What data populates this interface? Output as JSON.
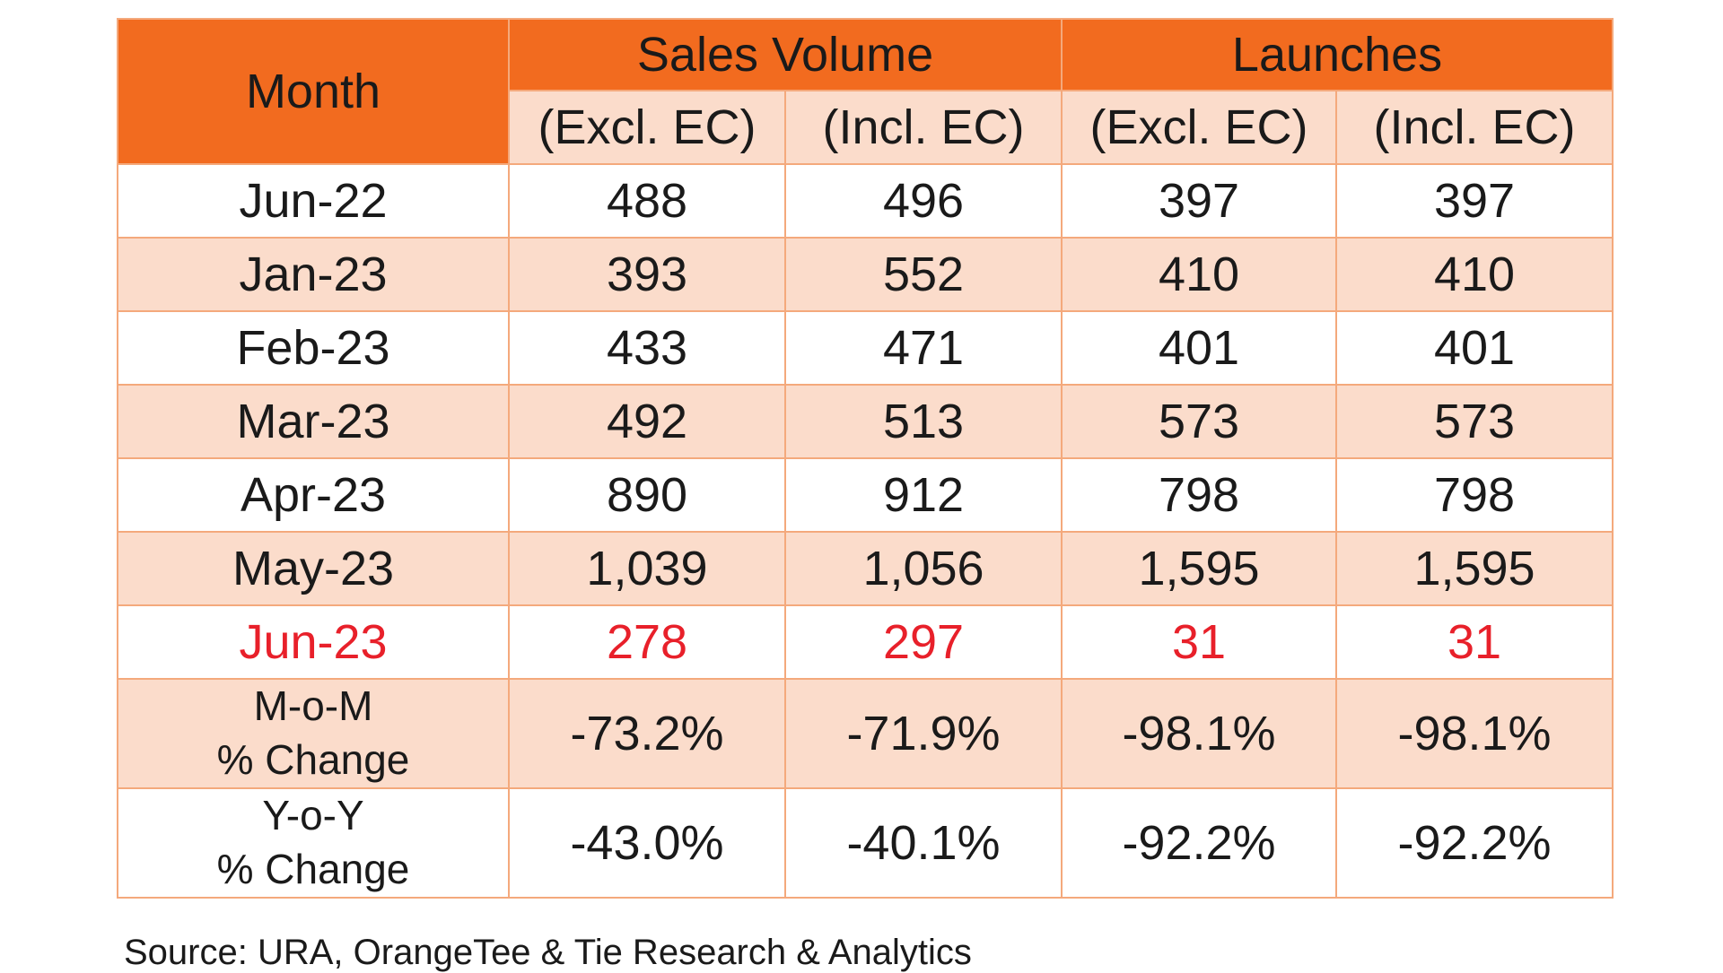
{
  "table": {
    "header": {
      "month": "Month",
      "groups": [
        "Sales Volume",
        "Launches"
      ],
      "sub": [
        "(Excl. EC)",
        "(Incl. EC)",
        "(Excl. EC)",
        "(Incl. EC)"
      ]
    },
    "rows": [
      {
        "month": "Jun-22",
        "values": [
          "488",
          "496",
          "397",
          "397"
        ]
      },
      {
        "month": "Jan-23",
        "values": [
          "393",
          "552",
          "410",
          "410"
        ]
      },
      {
        "month": "Feb-23",
        "values": [
          "433",
          "471",
          "401",
          "401"
        ]
      },
      {
        "month": "Mar-23",
        "values": [
          "492",
          "513",
          "573",
          "573"
        ]
      },
      {
        "month": "Apr-23",
        "values": [
          "890",
          "912",
          "798",
          "798"
        ]
      },
      {
        "month": "May-23",
        "values": [
          "1,039",
          "1,056",
          "1,595",
          "1,595"
        ]
      },
      {
        "month": "Jun-23",
        "values": [
          "278",
          "297",
          "31",
          "31"
        ]
      }
    ],
    "mom": {
      "line1": "M-o-M",
      "line2": "% Change",
      "values": [
        "-73.2%",
        "-71.9%",
        "-98.1%",
        "-98.1%"
      ]
    },
    "yoy": {
      "line1": "Y-o-Y",
      "line2": "% Change",
      "values": [
        "-43.0%",
        "-40.1%",
        "-92.2%",
        "-92.2%"
      ]
    }
  },
  "source": "Source: URA, OrangeTee & Tie Research & Analytics",
  "colors": {
    "header_orange": "#f26b1f",
    "row_peach": "#fbdccb",
    "highlight_red": "#e8202a",
    "border": "#f4a97c"
  }
}
